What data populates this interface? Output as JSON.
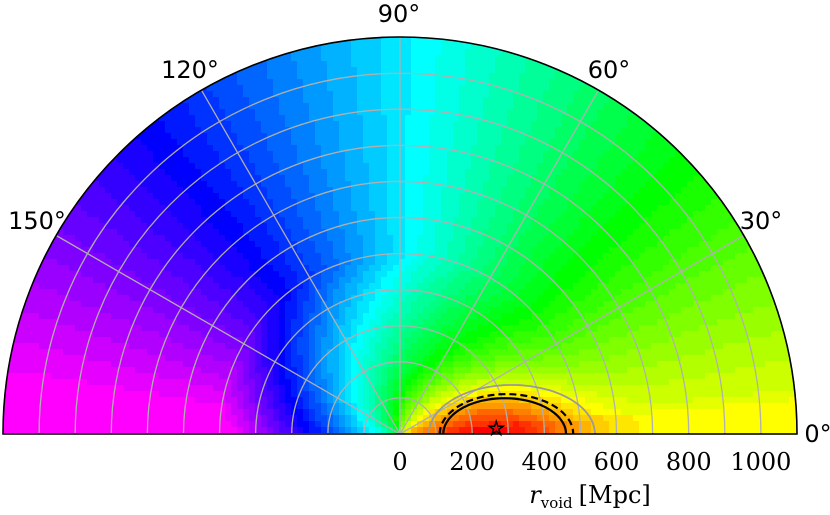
{
  "chart_data": {
    "type": "heatmap",
    "projection": "polar-half",
    "title": "",
    "theta_ticks": [
      "0°",
      "30°",
      "60°",
      "90°",
      "120°",
      "150°"
    ],
    "theta_tick_values": [
      0,
      30,
      60,
      90,
      120,
      150
    ],
    "theta_range": [
      0,
      180
    ],
    "r_ticks": [
      "0",
      "200",
      "400",
      "600",
      "800",
      "1000"
    ],
    "r_tick_values": [
      0,
      200,
      400,
      600,
      800,
      1000
    ],
    "r_range": [
      0,
      1100
    ],
    "r_gridlines": [
      100,
      200,
      300,
      400,
      500,
      600,
      700,
      800,
      900,
      1000,
      1100
    ],
    "theta_gridlines": [
      0,
      30,
      60,
      90,
      120,
      150,
      180
    ],
    "r_label_var": "r",
    "r_label_sub": "void",
    "r_label_unit": "[Mpc]",
    "colormap": "hsv-reversed (red at best fit → magenta at 180°)",
    "best_fit": {
      "r": 250,
      "theta": 0,
      "marker": "star"
    },
    "contours": [
      {
        "style": "solid",
        "color": "#000000",
        "r_min": 120,
        "r_max": 460,
        "theta_max": 20
      },
      {
        "style": "dashed",
        "color": "#000000",
        "r_min": 110,
        "r_max": 480,
        "theta_max": 22
      },
      {
        "style": "solid",
        "color": "#9a9a9a",
        "r_min": 80,
        "r_max": 540,
        "theta_max": 26
      }
    ],
    "grid": true
  }
}
